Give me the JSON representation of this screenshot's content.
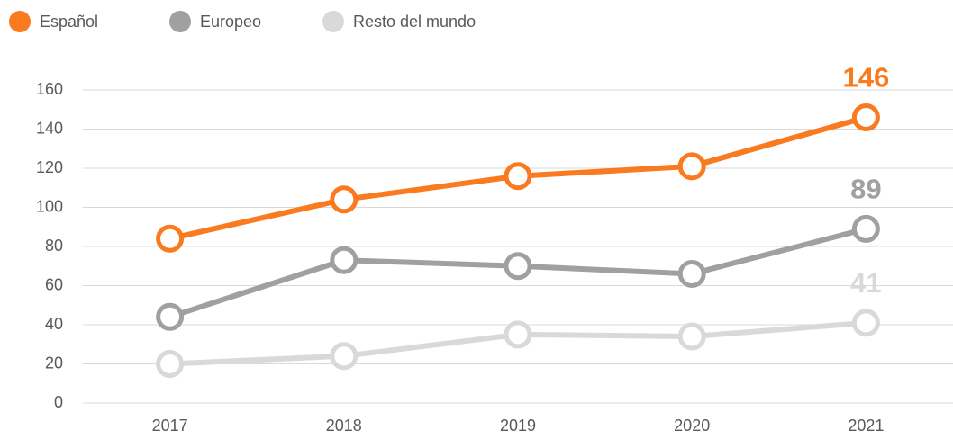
{
  "chart_data": {
    "type": "line",
    "categories": [
      "2017",
      "2018",
      "2019",
      "2020",
      "2021"
    ],
    "series": [
      {
        "name": "Español",
        "color": "#f97a1f",
        "values": [
          84,
          104,
          116,
          121,
          146
        ]
      },
      {
        "name": "Europeo",
        "color": "#a0a0a0",
        "values": [
          44,
          73,
          70,
          66,
          89
        ]
      },
      {
        "name": "Resto del mundo",
        "color": "#d9d9d9",
        "values": [
          20,
          24,
          35,
          34,
          41
        ]
      }
    ],
    "ylim": [
      0,
      160
    ],
    "yticks": [
      0,
      20,
      40,
      60,
      80,
      100,
      120,
      140,
      160
    ],
    "grid": true,
    "legend": "top-left"
  }
}
